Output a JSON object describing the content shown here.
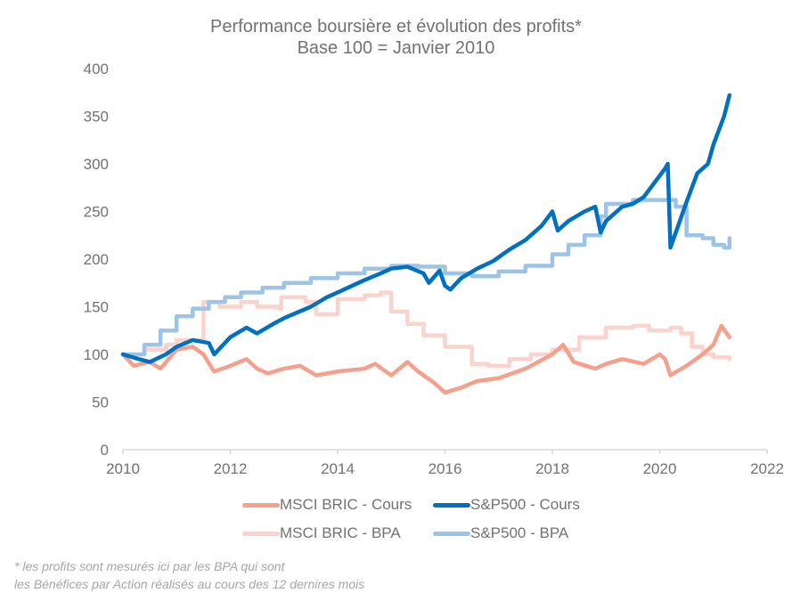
{
  "title": {
    "line1": "Performance boursière et évolution des profits*",
    "line2": "Base 100 = Janvier 2010"
  },
  "footnote": {
    "line1": "* les profits sont mesurés ici par les BPA qui sont",
    "line2": "les Bénéfices par Action réalisés au cours des 12 dernires mois"
  },
  "legend": [
    {
      "label": "MSCI BRIC - Cours",
      "color": "#F4A08C"
    },
    {
      "label": "S&P500 - Cours",
      "color": "#0070C0"
    },
    {
      "label": "MSCI BRIC - BPA",
      "color": "#FBD3CC"
    },
    {
      "label": "S&P500 - BPA",
      "color": "#9DC3E6"
    }
  ],
  "chart_data": {
    "type": "line",
    "title": "Performance boursière et évolution des profits* — Base 100 = Janvier 2010",
    "xlabel": "",
    "ylabel": "",
    "xlim": [
      2010,
      2022
    ],
    "ylim": [
      0,
      400
    ],
    "xticks": [
      "2010",
      "2012",
      "2014",
      "2016",
      "2018",
      "2020",
      "2022"
    ],
    "yticks": [
      "0",
      "50",
      "100",
      "150",
      "200",
      "250",
      "300",
      "350",
      "400"
    ],
    "grid": false,
    "legend_position": "bottom",
    "series": [
      {
        "name": "MSCI BRIC - BPA",
        "color": "#FBD3CC",
        "x": [
          2010.0,
          2010.4,
          2010.8,
          2011.0,
          2011.45,
          2011.5,
          2011.8,
          2012.2,
          2012.5,
          2012.9,
          2012.95,
          2013.4,
          2013.6,
          2014.0,
          2014.5,
          2014.8,
          2015.0,
          2015.3,
          2015.6,
          2016.0,
          2016.5,
          2016.8,
          2017.2,
          2017.6,
          2018.0,
          2018.5,
          2019.0,
          2019.5,
          2019.8,
          2020.2,
          2020.4,
          2020.6,
          2020.8,
          2021.0,
          2021.3
        ],
        "y": [
          100,
          105,
          110,
          115,
          115,
          155,
          150,
          155,
          150,
          148,
          160,
          155,
          142,
          158,
          162,
          165,
          145,
          132,
          120,
          108,
          90,
          88,
          95,
          100,
          105,
          118,
          128,
          130,
          125,
          128,
          122,
          108,
          100,
          97,
          95
        ]
      },
      {
        "name": "S&P500 - BPA",
        "color": "#9DC3E6",
        "x": [
          2010.0,
          2010.2,
          2010.4,
          2010.7,
          2011.0,
          2011.3,
          2011.6,
          2011.9,
          2012.2,
          2012.6,
          2013.0,
          2013.5,
          2014.0,
          2014.5,
          2015.0,
          2015.5,
          2016.0,
          2016.5,
          2017.0,
          2017.5,
          2018.0,
          2018.3,
          2018.6,
          2018.9,
          2019.0,
          2019.5,
          2020.0,
          2020.3,
          2020.5,
          2020.8,
          2021.0,
          2021.2,
          2021.3
        ],
        "y": [
          100,
          100,
          110,
          125,
          140,
          148,
          155,
          160,
          165,
          170,
          175,
          180,
          185,
          190,
          193,
          192,
          185,
          182,
          187,
          193,
          205,
          215,
          225,
          245,
          258,
          262,
          262,
          255,
          225,
          222,
          215,
          212,
          222
        ]
      },
      {
        "name": "MSCI BRIC - Cours",
        "color": "#F4A08C",
        "x": [
          2010.0,
          2010.2,
          2010.5,
          2010.7,
          2011.0,
          2011.3,
          2011.5,
          2011.7,
          2012.0,
          2012.3,
          2012.5,
          2012.7,
          2013.0,
          2013.3,
          2013.6,
          2014.0,
          2014.5,
          2014.7,
          2015.0,
          2015.3,
          2015.5,
          2015.8,
          2016.0,
          2016.3,
          2016.6,
          2017.0,
          2017.5,
          2018.0,
          2018.2,
          2018.4,
          2018.8,
          2019.0,
          2019.3,
          2019.7,
          2020.0,
          2020.1,
          2020.2,
          2020.5,
          2020.8,
          2021.0,
          2021.15,
          2021.3
        ],
        "y": [
          100,
          88,
          92,
          85,
          105,
          108,
          100,
          82,
          88,
          95,
          85,
          80,
          85,
          88,
          78,
          82,
          85,
          90,
          78,
          92,
          82,
          70,
          60,
          65,
          72,
          75,
          85,
          100,
          110,
          92,
          85,
          90,
          95,
          90,
          100,
          95,
          78,
          88,
          100,
          110,
          130,
          118
        ]
      },
      {
        "name": "S&P500 - Cours",
        "color": "#0070C0",
        "x": [
          2010.0,
          2010.3,
          2010.5,
          2010.8,
          2011.0,
          2011.3,
          2011.6,
          2011.7,
          2012.0,
          2012.3,
          2012.5,
          2012.8,
          2013.0,
          2013.5,
          2013.8,
          2014.0,
          2014.5,
          2014.8,
          2015.0,
          2015.3,
          2015.6,
          2015.7,
          2015.9,
          2016.0,
          2016.1,
          2016.3,
          2016.6,
          2016.9,
          2017.2,
          2017.5,
          2017.8,
          2018.0,
          2018.1,
          2018.3,
          2018.6,
          2018.8,
          2018.9,
          2019.0,
          2019.3,
          2019.5,
          2019.7,
          2019.9,
          2020.1,
          2020.15,
          2020.2,
          2020.25,
          2020.5,
          2020.7,
          2020.9,
          2021.0,
          2021.2,
          2021.3
        ],
        "y": [
          100,
          95,
          92,
          100,
          108,
          115,
          112,
          100,
          118,
          128,
          122,
          132,
          138,
          150,
          160,
          165,
          178,
          185,
          190,
          192,
          185,
          175,
          188,
          172,
          168,
          180,
          190,
          198,
          210,
          220,
          235,
          250,
          230,
          240,
          250,
          255,
          228,
          240,
          255,
          258,
          265,
          280,
          295,
          300,
          212,
          220,
          260,
          290,
          300,
          320,
          350,
          372
        ]
      }
    ]
  }
}
